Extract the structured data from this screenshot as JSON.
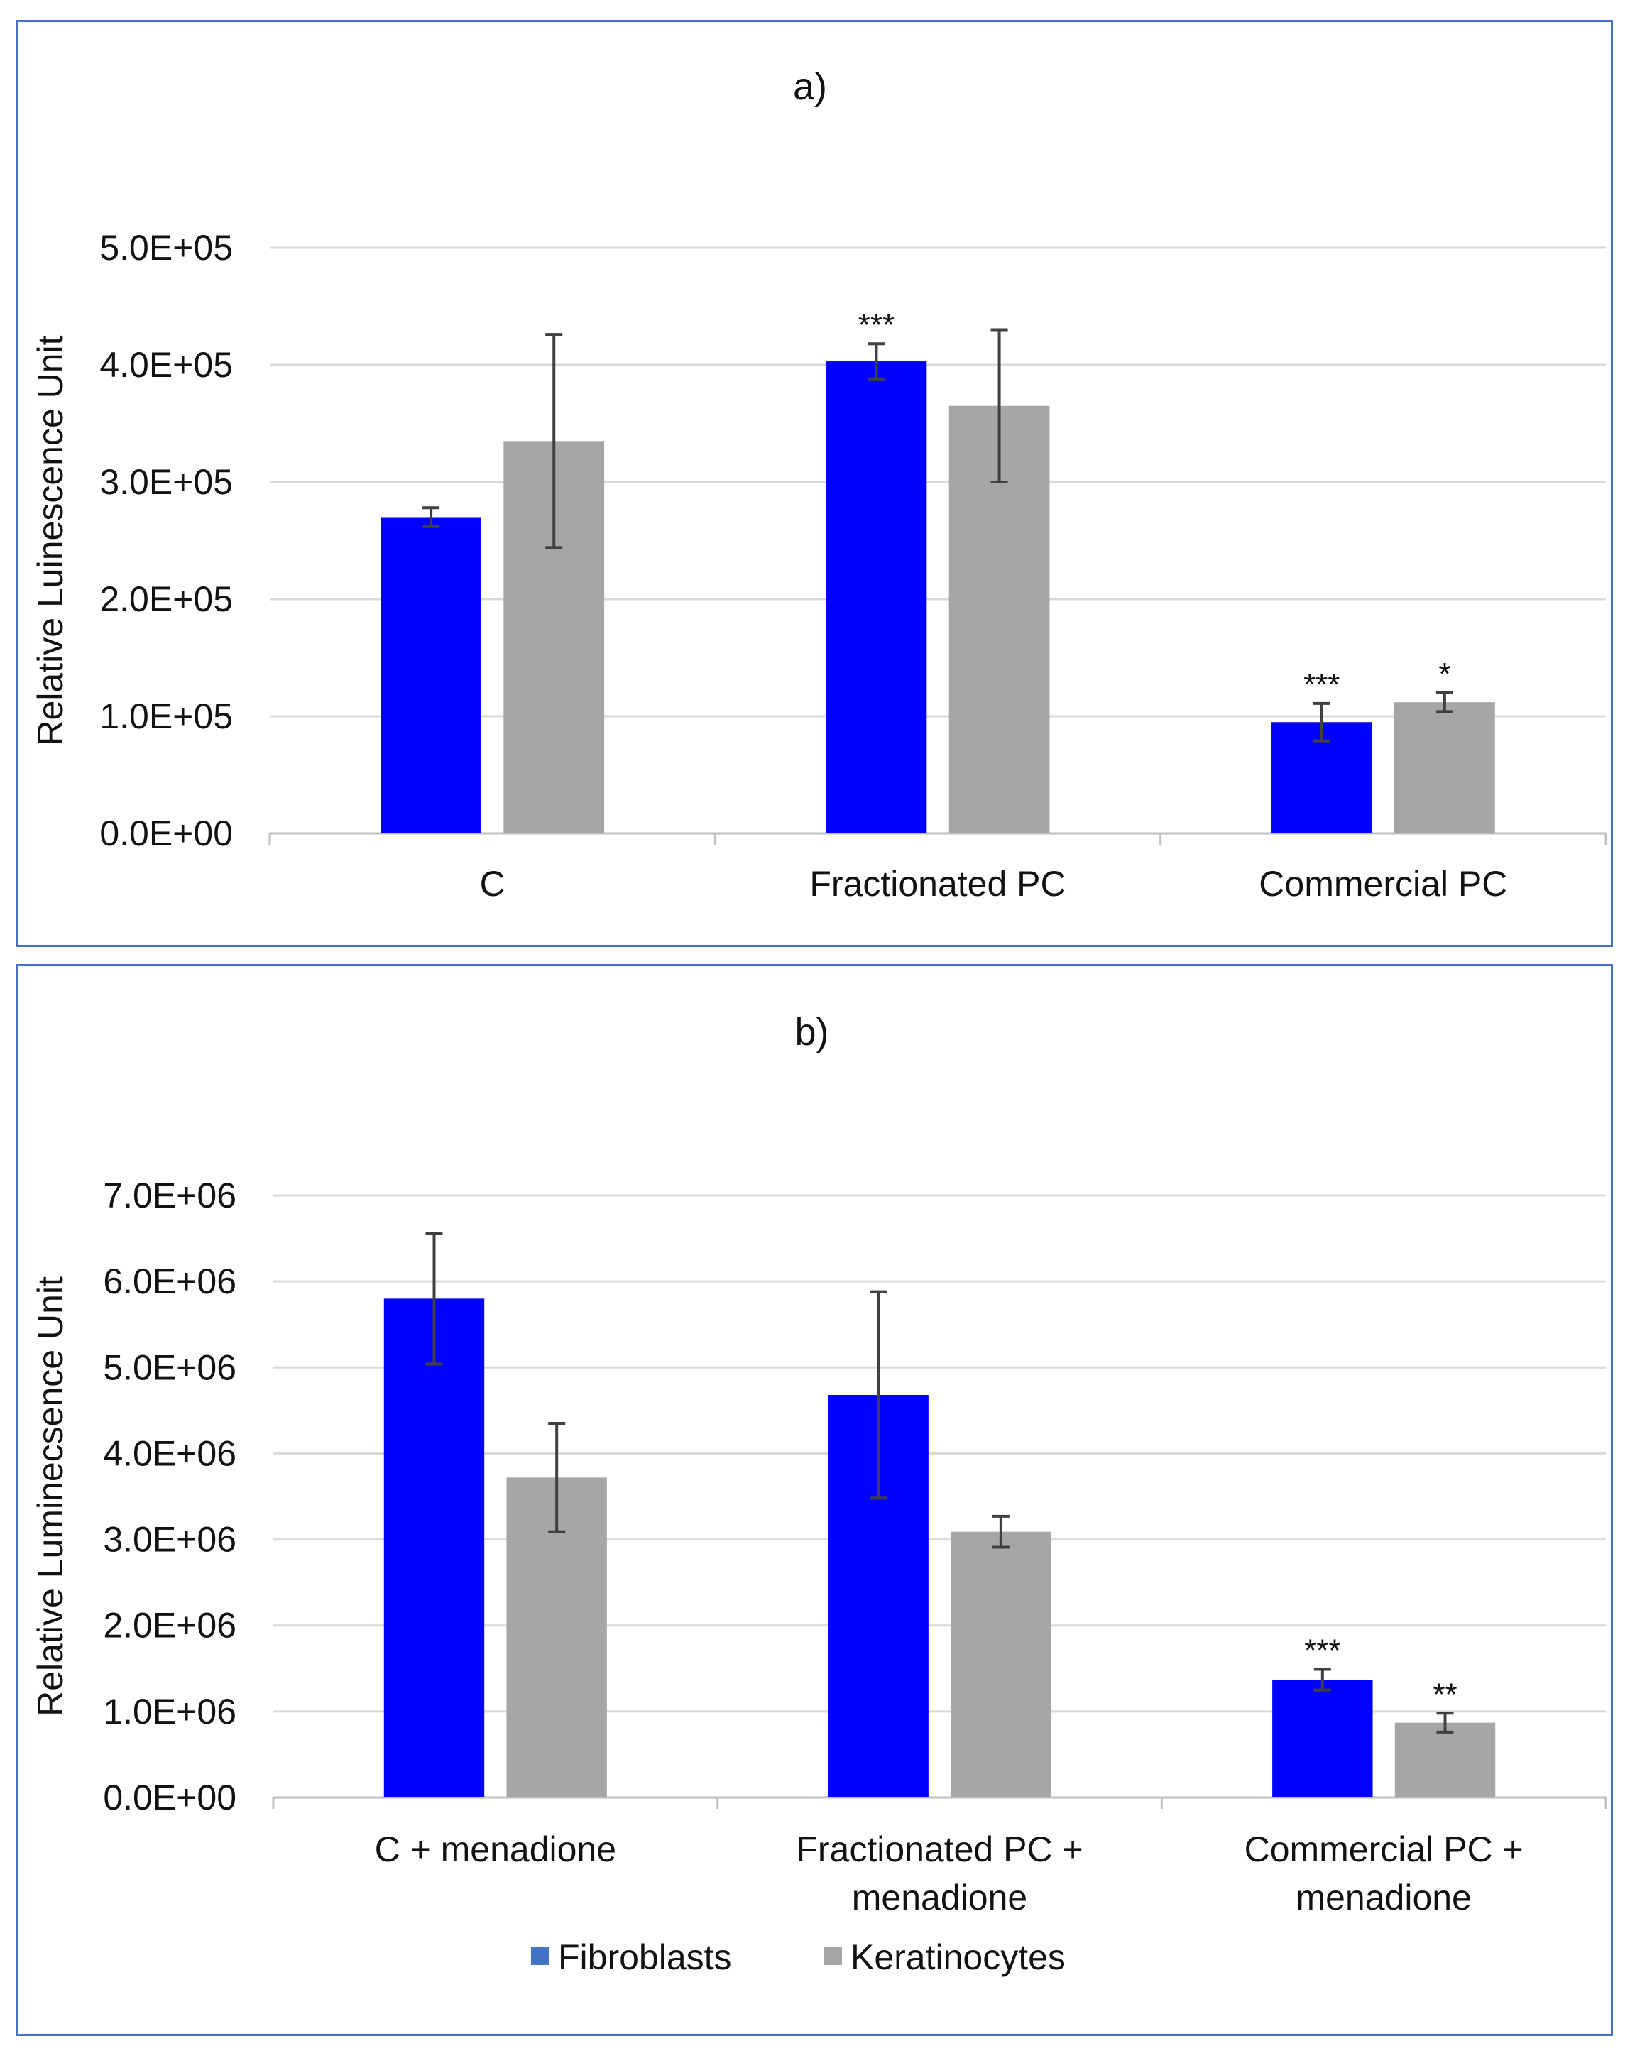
{
  "colors": {
    "fibroblasts": "#0000ff",
    "keratinocytes": "#a6a6a6",
    "gridline": "#d9d9d9",
    "axis": "#bfbfbf",
    "errorbar": "#404040",
    "legend_fibroblasts_swatch": "#4472c4",
    "panel_border": "#4a72c4"
  },
  "legend": {
    "items": [
      "Fibroblasts",
      "Keratinocytes"
    ]
  },
  "chart_data": [
    {
      "type": "bar",
      "title": "a)",
      "xlabel": "",
      "ylabel": "Relative Luinescence Unit",
      "ylim": [
        0,
        500000
      ],
      "yticks": [
        0,
        100000,
        200000,
        300000,
        400000,
        500000
      ],
      "ytick_labels": [
        "0.0E+00",
        "1.0E+05",
        "2.0E+05",
        "3.0E+05",
        "4.0E+05",
        "5.0E+05"
      ],
      "grid": true,
      "categories": [
        [
          "C"
        ],
        [
          "Fractionated PC"
        ],
        [
          "Commercial PC"
        ]
      ],
      "series": [
        {
          "name": "Fibroblasts",
          "values": [
            270000,
            403000,
            95000
          ],
          "errors": [
            8000,
            15000,
            16000
          ],
          "annotations": [
            "",
            "***",
            "***"
          ]
        },
        {
          "name": "Keratinocytes",
          "values": [
            335000,
            365000,
            112000
          ],
          "errors": [
            91000,
            65000,
            8000
          ],
          "annotations": [
            "",
            "",
            "*"
          ]
        }
      ]
    },
    {
      "type": "bar",
      "title": "b)",
      "xlabel": "",
      "ylabel": "Relative Luminecsence Unit",
      "ylim": [
        0,
        7000000
      ],
      "yticks": [
        0,
        1000000,
        2000000,
        3000000,
        4000000,
        5000000,
        6000000,
        7000000
      ],
      "ytick_labels": [
        "0.0E+00",
        "1.0E+06",
        "2.0E+06",
        "3.0E+06",
        "4.0E+06",
        "5.0E+06",
        "6.0E+06",
        "7.0E+06"
      ],
      "grid": true,
      "categories": [
        [
          "C + menadione"
        ],
        [
          "Fractionated PC +",
          "menadione"
        ],
        [
          "Commercial PC +",
          "menadione"
        ]
      ],
      "series": [
        {
          "name": "Fibroblasts",
          "values": [
            5800000,
            4680000,
            1370000
          ],
          "errors": [
            760000,
            1200000,
            120000
          ],
          "annotations": [
            "",
            "",
            "***"
          ]
        },
        {
          "name": "Keratinocytes",
          "values": [
            3720000,
            3090000,
            870000
          ],
          "errors": [
            630000,
            180000,
            110000
          ],
          "annotations": [
            "",
            "",
            "**"
          ]
        }
      ]
    }
  ]
}
